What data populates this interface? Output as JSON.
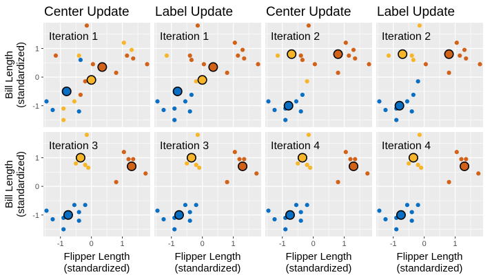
{
  "chart_data": {
    "type": "scatter",
    "xlabel": [
      "Flipper Length",
      "(standardized)"
    ],
    "ylabel": [
      "Bill Length",
      "(standardized)"
    ],
    "xlim": [
      -1.55,
      1.9
    ],
    "ylim": [
      -1.75,
      1.9
    ],
    "x_ticks": [
      -1,
      0,
      1
    ],
    "y_ticks": [
      -1,
      0,
      1
    ],
    "grid": true,
    "colors": {
      "panel_bg": "#ebebeb",
      "grid": "#ffffff",
      "cluster_blue": "#0a6fc2",
      "cluster_yellow": "#f7b52a",
      "cluster_orange": "#d1621a",
      "center_stroke": "#000000"
    },
    "column_titles": [
      "Center Update",
      "Label Update",
      "Center Update",
      "Label Update"
    ],
    "panels": [
      {
        "row": 0,
        "col": 0,
        "label": "Iteration 1",
        "points": [
          {
            "x": -1.15,
            "y": 0.75,
            "c": "orange"
          },
          {
            "x": -0.4,
            "y": 0.75,
            "c": "yellow"
          },
          {
            "x": -0.15,
            "y": 1.8,
            "c": "orange"
          },
          {
            "x": -0.35,
            "y": 0.6,
            "c": "blue"
          },
          {
            "x": -0.35,
            "y": -0.62,
            "c": "orange"
          },
          {
            "x": -0.2,
            "y": -0.15,
            "c": "orange"
          },
          {
            "x": -0.55,
            "y": -0.85,
            "c": "yellow"
          },
          {
            "x": -1.45,
            "y": -0.85,
            "c": "blue"
          },
          {
            "x": -1.25,
            "y": -1.15,
            "c": "blue"
          },
          {
            "x": -0.9,
            "y": -1.1,
            "c": "yellow"
          },
          {
            "x": -0.9,
            "y": -1.5,
            "c": "yellow"
          },
          {
            "x": -0.4,
            "y": -1.2,
            "c": "blue"
          },
          {
            "x": 0.05,
            "y": 0.45,
            "c": "orange"
          },
          {
            "x": 0.8,
            "y": 0.15,
            "c": "orange"
          },
          {
            "x": 1.05,
            "y": 1.2,
            "c": "yellow"
          },
          {
            "x": 1.15,
            "y": 0.75,
            "c": "orange"
          },
          {
            "x": 1.3,
            "y": 0.95,
            "c": "yellow"
          },
          {
            "x": 1.35,
            "y": 0.65,
            "c": "orange"
          },
          {
            "x": 1.8,
            "y": 0.45,
            "c": "orange"
          }
        ],
        "centers": [
          {
            "x": -0.8,
            "y": -0.5,
            "c": "blue"
          },
          {
            "x": 0.0,
            "y": -0.1,
            "c": "yellow"
          },
          {
            "x": 0.35,
            "y": 0.35,
            "c": "orange"
          }
        ]
      },
      {
        "row": 0,
        "col": 1,
        "label": "Iteration 1",
        "points": [
          {
            "x": -1.15,
            "y": 0.75,
            "c": "yellow"
          },
          {
            "x": -0.4,
            "y": 0.75,
            "c": "orange"
          },
          {
            "x": -0.15,
            "y": 1.8,
            "c": "orange"
          },
          {
            "x": -0.35,
            "y": 0.6,
            "c": "orange"
          },
          {
            "x": -0.35,
            "y": -0.62,
            "c": "blue"
          },
          {
            "x": -0.2,
            "y": -0.15,
            "c": "yellow"
          },
          {
            "x": -0.55,
            "y": -0.85,
            "c": "blue"
          },
          {
            "x": -1.45,
            "y": -0.85,
            "c": "blue"
          },
          {
            "x": -1.25,
            "y": -1.15,
            "c": "blue"
          },
          {
            "x": -0.9,
            "y": -1.1,
            "c": "blue"
          },
          {
            "x": -0.9,
            "y": -1.5,
            "c": "blue"
          },
          {
            "x": -0.4,
            "y": -1.2,
            "c": "blue"
          },
          {
            "x": 0.05,
            "y": 0.45,
            "c": "orange"
          },
          {
            "x": 0.8,
            "y": 0.15,
            "c": "orange"
          },
          {
            "x": 1.05,
            "y": 1.2,
            "c": "orange"
          },
          {
            "x": 1.15,
            "y": 0.75,
            "c": "orange"
          },
          {
            "x": 1.3,
            "y": 0.95,
            "c": "orange"
          },
          {
            "x": 1.35,
            "y": 0.65,
            "c": "orange"
          },
          {
            "x": 1.8,
            "y": 0.45,
            "c": "orange"
          }
        ],
        "centers": [
          {
            "x": -0.8,
            "y": -0.5,
            "c": "blue"
          },
          {
            "x": 0.0,
            "y": -0.1,
            "c": "yellow"
          },
          {
            "x": 0.35,
            "y": 0.35,
            "c": "orange"
          }
        ]
      },
      {
        "row": 0,
        "col": 2,
        "label": "Iteration 2",
        "points": [
          {
            "x": -1.15,
            "y": 0.75,
            "c": "yellow"
          },
          {
            "x": -0.4,
            "y": 0.75,
            "c": "orange"
          },
          {
            "x": -0.15,
            "y": 1.8,
            "c": "orange"
          },
          {
            "x": -0.35,
            "y": 0.6,
            "c": "orange"
          },
          {
            "x": -0.35,
            "y": -0.62,
            "c": "blue"
          },
          {
            "x": -0.2,
            "y": -0.15,
            "c": "yellow"
          },
          {
            "x": -0.55,
            "y": -0.85,
            "c": "blue"
          },
          {
            "x": -1.45,
            "y": -0.85,
            "c": "blue"
          },
          {
            "x": -1.25,
            "y": -1.15,
            "c": "blue"
          },
          {
            "x": -0.9,
            "y": -1.1,
            "c": "blue"
          },
          {
            "x": -0.9,
            "y": -1.5,
            "c": "blue"
          },
          {
            "x": -0.4,
            "y": -1.2,
            "c": "blue"
          },
          {
            "x": 0.05,
            "y": 0.45,
            "c": "orange"
          },
          {
            "x": 0.8,
            "y": 0.15,
            "c": "orange"
          },
          {
            "x": 1.05,
            "y": 1.2,
            "c": "orange"
          },
          {
            "x": 1.15,
            "y": 0.75,
            "c": "orange"
          },
          {
            "x": 1.3,
            "y": 0.95,
            "c": "orange"
          },
          {
            "x": 1.35,
            "y": 0.65,
            "c": "orange"
          },
          {
            "x": 1.8,
            "y": 0.45,
            "c": "orange"
          }
        ],
        "centers": [
          {
            "x": -0.8,
            "y": -1.0,
            "c": "blue"
          },
          {
            "x": -0.7,
            "y": 0.8,
            "c": "yellow"
          },
          {
            "x": 0.8,
            "y": 0.8,
            "c": "orange"
          }
        ]
      },
      {
        "row": 0,
        "col": 3,
        "label": "Iteration 2",
        "points": [
          {
            "x": -1.15,
            "y": 0.75,
            "c": "yellow"
          },
          {
            "x": -0.4,
            "y": 0.75,
            "c": "yellow"
          },
          {
            "x": -0.15,
            "y": 1.8,
            "c": "yellow"
          },
          {
            "x": -0.35,
            "y": 0.6,
            "c": "yellow"
          },
          {
            "x": -0.35,
            "y": -0.62,
            "c": "blue"
          },
          {
            "x": -0.2,
            "y": -0.15,
            "c": "blue"
          },
          {
            "x": -0.55,
            "y": -0.85,
            "c": "blue"
          },
          {
            "x": -1.45,
            "y": -0.85,
            "c": "blue"
          },
          {
            "x": -1.25,
            "y": -1.15,
            "c": "blue"
          },
          {
            "x": -0.9,
            "y": -1.1,
            "c": "blue"
          },
          {
            "x": -0.9,
            "y": -1.5,
            "c": "blue"
          },
          {
            "x": -0.4,
            "y": -1.2,
            "c": "blue"
          },
          {
            "x": 0.05,
            "y": 0.45,
            "c": "orange"
          },
          {
            "x": 0.8,
            "y": 0.15,
            "c": "orange"
          },
          {
            "x": 1.05,
            "y": 1.2,
            "c": "orange"
          },
          {
            "x": 1.15,
            "y": 0.75,
            "c": "orange"
          },
          {
            "x": 1.3,
            "y": 0.95,
            "c": "orange"
          },
          {
            "x": 1.35,
            "y": 0.65,
            "c": "orange"
          },
          {
            "x": 1.8,
            "y": 0.45,
            "c": "orange"
          }
        ],
        "centers": [
          {
            "x": -0.8,
            "y": -1.0,
            "c": "blue"
          },
          {
            "x": -0.7,
            "y": 0.8,
            "c": "yellow"
          },
          {
            "x": 0.8,
            "y": 0.8,
            "c": "orange"
          }
        ]
      },
      {
        "row": 1,
        "col": 0,
        "label": "Iteration 3",
        "points": [
          {
            "x": -0.15,
            "y": 1.8,
            "c": "yellow"
          },
          {
            "x": -0.5,
            "y": 0.8,
            "c": "yellow"
          },
          {
            "x": -0.2,
            "y": 0.75,
            "c": "yellow"
          },
          {
            "x": -0.1,
            "y": 0.65,
            "c": "yellow"
          },
          {
            "x": -1.45,
            "y": -0.85,
            "c": "blue"
          },
          {
            "x": -1.25,
            "y": -1.15,
            "c": "blue"
          },
          {
            "x": -0.9,
            "y": -1.1,
            "c": "blue"
          },
          {
            "x": -0.9,
            "y": -1.5,
            "c": "blue"
          },
          {
            "x": -0.4,
            "y": -1.2,
            "c": "blue"
          },
          {
            "x": -0.55,
            "y": -0.65,
            "c": "blue"
          },
          {
            "x": -0.2,
            "y": -0.65,
            "c": "blue"
          },
          {
            "x": -0.4,
            "y": -0.9,
            "c": "blue"
          },
          {
            "x": 0.8,
            "y": 0.15,
            "c": "orange"
          },
          {
            "x": 1.05,
            "y": 1.2,
            "c": "orange"
          },
          {
            "x": 1.2,
            "y": 0.95,
            "c": "orange"
          },
          {
            "x": 1.35,
            "y": 0.95,
            "c": "orange"
          },
          {
            "x": 1.75,
            "y": 0.45,
            "c": "orange"
          }
        ],
        "centers": [
          {
            "x": -0.75,
            "y": -1.0,
            "c": "blue"
          },
          {
            "x": -0.35,
            "y": 1.0,
            "c": "yellow"
          },
          {
            "x": 1.3,
            "y": 0.7,
            "c": "orange"
          }
        ]
      },
      {
        "row": 1,
        "col": 1,
        "label": "Iteration 3",
        "points": [
          {
            "x": -0.15,
            "y": 1.8,
            "c": "yellow"
          },
          {
            "x": -0.5,
            "y": 0.8,
            "c": "yellow"
          },
          {
            "x": -0.2,
            "y": 0.75,
            "c": "yellow"
          },
          {
            "x": -0.1,
            "y": 0.65,
            "c": "yellow"
          },
          {
            "x": -1.45,
            "y": -0.85,
            "c": "blue"
          },
          {
            "x": -1.25,
            "y": -1.15,
            "c": "blue"
          },
          {
            "x": -0.9,
            "y": -1.1,
            "c": "blue"
          },
          {
            "x": -0.9,
            "y": -1.5,
            "c": "blue"
          },
          {
            "x": -0.4,
            "y": -1.2,
            "c": "blue"
          },
          {
            "x": -0.55,
            "y": -0.65,
            "c": "blue"
          },
          {
            "x": -0.2,
            "y": -0.65,
            "c": "blue"
          },
          {
            "x": -0.4,
            "y": -0.9,
            "c": "blue"
          },
          {
            "x": 0.8,
            "y": 0.15,
            "c": "orange"
          },
          {
            "x": 1.05,
            "y": 1.2,
            "c": "orange"
          },
          {
            "x": 1.2,
            "y": 0.95,
            "c": "orange"
          },
          {
            "x": 1.35,
            "y": 0.95,
            "c": "orange"
          },
          {
            "x": 1.75,
            "y": 0.45,
            "c": "orange"
          }
        ],
        "centers": [
          {
            "x": -0.75,
            "y": -1.0,
            "c": "blue"
          },
          {
            "x": -0.35,
            "y": 1.0,
            "c": "yellow"
          },
          {
            "x": 1.3,
            "y": 0.7,
            "c": "orange"
          }
        ]
      },
      {
        "row": 1,
        "col": 2,
        "label": "Iteration 4",
        "points": [
          {
            "x": -0.15,
            "y": 1.8,
            "c": "yellow"
          },
          {
            "x": -0.5,
            "y": 0.8,
            "c": "yellow"
          },
          {
            "x": -0.2,
            "y": 0.75,
            "c": "yellow"
          },
          {
            "x": -0.1,
            "y": 0.65,
            "c": "yellow"
          },
          {
            "x": -1.45,
            "y": -0.85,
            "c": "blue"
          },
          {
            "x": -1.25,
            "y": -1.15,
            "c": "blue"
          },
          {
            "x": -0.9,
            "y": -1.1,
            "c": "blue"
          },
          {
            "x": -0.9,
            "y": -1.5,
            "c": "blue"
          },
          {
            "x": -0.4,
            "y": -1.2,
            "c": "blue"
          },
          {
            "x": -0.55,
            "y": -0.65,
            "c": "blue"
          },
          {
            "x": -0.2,
            "y": -0.65,
            "c": "blue"
          },
          {
            "x": -0.4,
            "y": -0.9,
            "c": "blue"
          },
          {
            "x": 0.8,
            "y": 0.15,
            "c": "orange"
          },
          {
            "x": 1.05,
            "y": 1.2,
            "c": "orange"
          },
          {
            "x": 1.2,
            "y": 0.95,
            "c": "orange"
          },
          {
            "x": 1.35,
            "y": 0.95,
            "c": "orange"
          },
          {
            "x": 1.75,
            "y": 0.45,
            "c": "orange"
          }
        ],
        "centers": [
          {
            "x": -0.75,
            "y": -1.0,
            "c": "blue"
          },
          {
            "x": -0.35,
            "y": 1.0,
            "c": "yellow"
          },
          {
            "x": 1.3,
            "y": 0.7,
            "c": "orange"
          }
        ]
      },
      {
        "row": 1,
        "col": 3,
        "label": "Iteration 4",
        "points": [
          {
            "x": -0.15,
            "y": 1.8,
            "c": "yellow"
          },
          {
            "x": -0.5,
            "y": 0.8,
            "c": "yellow"
          },
          {
            "x": -0.2,
            "y": 0.75,
            "c": "yellow"
          },
          {
            "x": -0.1,
            "y": 0.65,
            "c": "yellow"
          },
          {
            "x": -1.45,
            "y": -0.85,
            "c": "blue"
          },
          {
            "x": -1.25,
            "y": -1.15,
            "c": "blue"
          },
          {
            "x": -0.9,
            "y": -1.1,
            "c": "blue"
          },
          {
            "x": -0.9,
            "y": -1.5,
            "c": "blue"
          },
          {
            "x": -0.4,
            "y": -1.2,
            "c": "blue"
          },
          {
            "x": -0.55,
            "y": -0.65,
            "c": "blue"
          },
          {
            "x": -0.2,
            "y": -0.65,
            "c": "blue"
          },
          {
            "x": -0.4,
            "y": -0.9,
            "c": "blue"
          },
          {
            "x": 0.8,
            "y": 0.15,
            "c": "orange"
          },
          {
            "x": 1.05,
            "y": 1.2,
            "c": "orange"
          },
          {
            "x": 1.2,
            "y": 0.95,
            "c": "orange"
          },
          {
            "x": 1.35,
            "y": 0.95,
            "c": "orange"
          },
          {
            "x": 1.75,
            "y": 0.45,
            "c": "orange"
          }
        ],
        "centers": [
          {
            "x": -0.75,
            "y": -1.0,
            "c": "blue"
          },
          {
            "x": -0.35,
            "y": 1.0,
            "c": "yellow"
          },
          {
            "x": 1.3,
            "y": 0.7,
            "c": "orange"
          }
        ]
      }
    ]
  }
}
